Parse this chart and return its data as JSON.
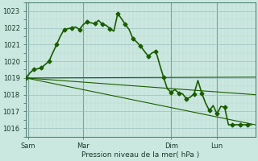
{
  "bg_color": "#cbe8e0",
  "plot_bg_color": "#cbe8e0",
  "grid_major_color": "#9bbfbf",
  "grid_minor_color": "#b8d8d0",
  "line_color": "#1a5c00",
  "vline_color": "#336655",
  "ylabel_ticks": [
    1016,
    1017,
    1018,
    1019,
    1020,
    1021,
    1022,
    1023
  ],
  "ylim": [
    1015.5,
    1023.5
  ],
  "xlim": [
    0,
    60
  ],
  "xlabel": "Pression niveau de la mer( hPa )",
  "day_labels": [
    "Sam",
    "Mar",
    "Dim",
    "Lun"
  ],
  "day_positions": [
    0.5,
    15,
    38,
    50
  ],
  "main_line": {
    "x": [
      0,
      1,
      2,
      3,
      4,
      5,
      6,
      7,
      8,
      9,
      10,
      11,
      12,
      13,
      14,
      15,
      16,
      17,
      18,
      19,
      20,
      21,
      22,
      23,
      24,
      25,
      26,
      27,
      28,
      29,
      30,
      31,
      32,
      33,
      34,
      35,
      36,
      37,
      38,
      39,
      40,
      41,
      42,
      43,
      44,
      45,
      46,
      47,
      48,
      49,
      50,
      51,
      52,
      53,
      54,
      55,
      56,
      57,
      58,
      59
    ],
    "y": [
      1019.0,
      1019.3,
      1019.5,
      1019.55,
      1019.6,
      1019.8,
      1020.0,
      1020.5,
      1021.0,
      1021.5,
      1021.9,
      1021.95,
      1022.0,
      1022.05,
      1021.9,
      1022.2,
      1022.35,
      1022.3,
      1022.25,
      1022.45,
      1022.2,
      1022.15,
      1021.95,
      1021.8,
      1022.85,
      1022.55,
      1022.2,
      1021.9,
      1021.35,
      1021.15,
      1020.9,
      1020.6,
      1020.3,
      1020.5,
      1020.6,
      1019.8,
      1019.05,
      1018.35,
      1018.15,
      1018.3,
      1018.1,
      1018.05,
      1017.75,
      1017.85,
      1018.05,
      1018.85,
      1018.1,
      1017.5,
      1017.05,
      1017.35,
      1016.85,
      1017.3,
      1017.25,
      1016.2,
      1016.2,
      1016.2,
      1016.2,
      1016.2,
      1016.2,
      1016.2
    ],
    "marker": "D",
    "markersize": 2.5,
    "linewidth": 1.2
  },
  "trend_lines": [
    {
      "x": [
        0,
        60
      ],
      "y": [
        1019.0,
        1019.05
      ],
      "linewidth": 0.8
    },
    {
      "x": [
        0,
        60
      ],
      "y": [
        1019.0,
        1018.0
      ],
      "linewidth": 0.8
    },
    {
      "x": [
        0,
        60
      ],
      "y": [
        1019.0,
        1016.2
      ],
      "linewidth": 0.8
    }
  ]
}
